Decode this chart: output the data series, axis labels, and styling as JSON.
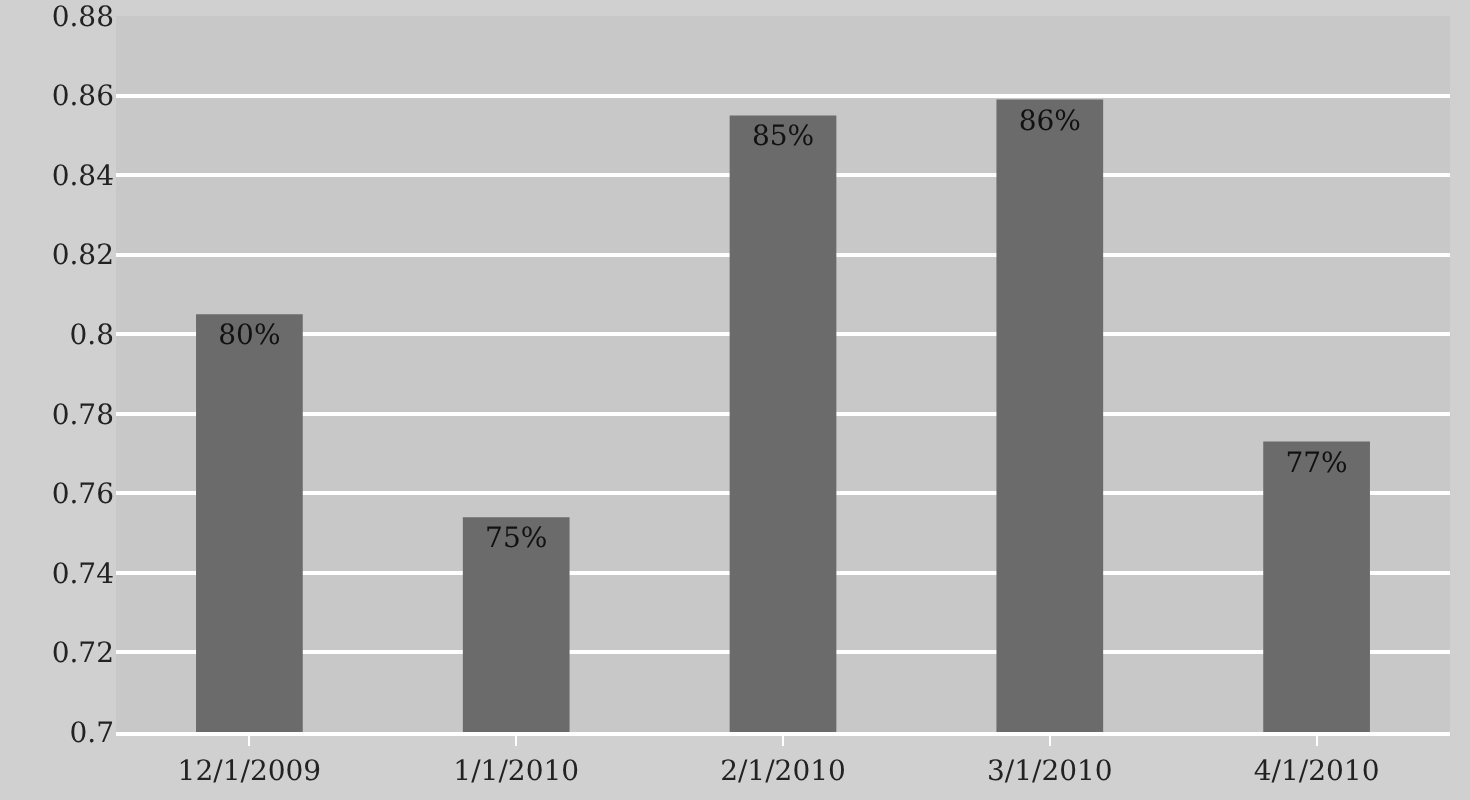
{
  "chart_data": {
    "type": "bar",
    "categories": [
      "12/1/2009",
      "1/1/2010",
      "2/1/2010",
      "3/1/2010",
      "4/1/2010"
    ],
    "values": [
      0.805,
      0.754,
      0.855,
      0.859,
      0.773
    ],
    "value_labels": [
      "80%",
      "75%",
      "85%",
      "86%",
      "77%"
    ],
    "color": "#6b6b6b",
    "ylim": [
      0.7,
      0.88
    ],
    "yticks": [
      0.7,
      0.72,
      0.74,
      0.76,
      0.78,
      0.8,
      0.82,
      0.84,
      0.86,
      0.88
    ],
    "grid": "y"
  }
}
